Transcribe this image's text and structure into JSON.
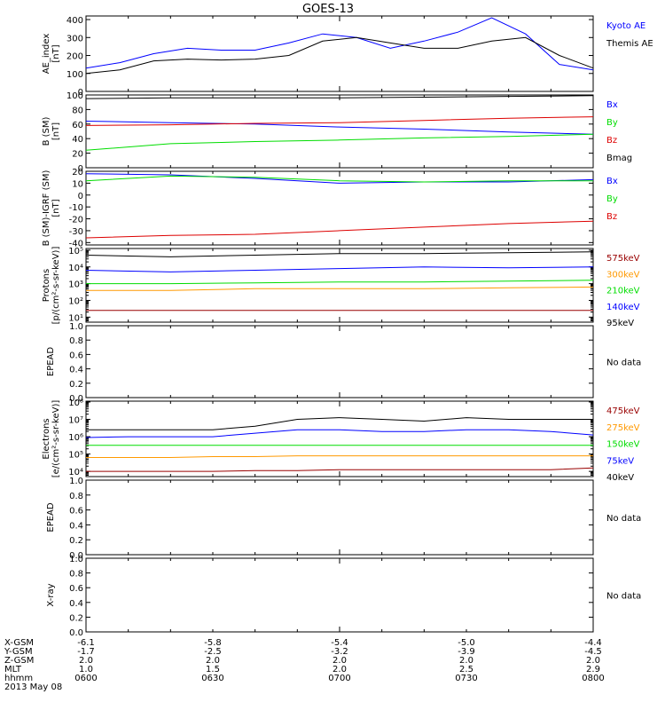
{
  "title": "GOES-13",
  "chart_data": [
    {
      "type": "line",
      "ylabel": [
        "AE_index",
        "[nT]"
      ],
      "ylim": [
        0,
        420
      ],
      "yticks": [
        "0",
        "100",
        "200",
        "300",
        "400"
      ],
      "yticks_values": [
        0,
        100,
        200,
        300,
        400
      ],
      "x": [
        0,
        4,
        8,
        12,
        16,
        20,
        24,
        28,
        32,
        36,
        40,
        44,
        48,
        52,
        56,
        60
      ],
      "series": [
        {
          "name": "Kyoto AE",
          "color": "#0000ff",
          "values": [
            130,
            160,
            210,
            240,
            230,
            230,
            270,
            320,
            300,
            240,
            280,
            330,
            410,
            320,
            150,
            120
          ]
        },
        {
          "name": "Themis AE",
          "color": "#000000",
          "values": [
            100,
            120,
            170,
            180,
            175,
            180,
            200,
            280,
            300,
            270,
            240,
            240,
            280,
            300,
            200,
            130
          ]
        }
      ]
    },
    {
      "type": "line",
      "ylabel": [
        "B (SM)",
        "[nT]"
      ],
      "ylim": [
        0,
        100
      ],
      "yticks": [
        "0",
        "20",
        "40",
        "60",
        "80",
        "100"
      ],
      "yticks_values": [
        0,
        20,
        40,
        60,
        80,
        100
      ],
      "x": [
        0,
        10,
        20,
        30,
        40,
        50,
        60
      ],
      "series": [
        {
          "name": "Bx",
          "color": "#0000ff",
          "values": [
            64,
            62,
            60,
            56,
            53,
            49,
            46
          ]
        },
        {
          "name": "By",
          "color": "#00dd00",
          "values": [
            24,
            33,
            36,
            38,
            41,
            43,
            46
          ]
        },
        {
          "name": "Bz",
          "color": "#dd0000",
          "values": [
            58,
            59,
            61,
            62,
            65,
            68,
            70
          ]
        },
        {
          "name": "Bmag",
          "color": "#000000",
          "values": [
            95,
            96,
            96,
            96,
            97,
            98,
            99
          ]
        }
      ]
    },
    {
      "type": "line",
      "ylabel": [
        "B (SM)-IGRF (SM)",
        "[nT]"
      ],
      "ylim": [
        -42,
        20
      ],
      "yticks": [
        "-40",
        "-30",
        "-20",
        "-10",
        "0",
        "10",
        "20"
      ],
      "yticks_values": [
        -40,
        -30,
        -20,
        -10,
        0,
        10,
        20
      ],
      "x": [
        0,
        10,
        20,
        30,
        40,
        50,
        60
      ],
      "series": [
        {
          "name": "Bx",
          "color": "#0000ff",
          "values": [
            18,
            17,
            14,
            10,
            11,
            11,
            13
          ]
        },
        {
          "name": "By",
          "color": "#00dd00",
          "values": [
            12,
            16,
            15,
            12,
            11,
            12,
            12
          ]
        },
        {
          "name": "Bz",
          "color": "#dd0000",
          "values": [
            -36,
            -34,
            -33,
            -30,
            -27,
            -24,
            -22
          ]
        }
      ]
    },
    {
      "type": "line",
      "log": true,
      "ylabel": [
        "Protons",
        "[p/(cm²-s-sr-keV)]"
      ],
      "ylim_log": [
        0.7,
        5.1
      ],
      "yticks": [
        "10¹",
        "10²",
        "10³",
        "10⁴",
        "10⁵"
      ],
      "yticks_values": [
        1,
        2,
        3,
        4,
        5
      ],
      "x": [
        0,
        10,
        20,
        30,
        40,
        50,
        60
      ],
      "series": [
        {
          "name": "575keV",
          "color": "#990000",
          "values_log": [
            1.4,
            1.4,
            1.4,
            1.4,
            1.4,
            1.4,
            1.4
          ]
        },
        {
          "name": "300keV",
          "color": "#ff9900",
          "values_log": [
            2.6,
            2.6,
            2.7,
            2.7,
            2.7,
            2.75,
            2.8
          ]
        },
        {
          "name": "210keV",
          "color": "#00dd00",
          "values_log": [
            3.0,
            3.0,
            3.05,
            3.1,
            3.1,
            3.15,
            3.2
          ]
        },
        {
          "name": "140keV",
          "color": "#0000ff",
          "values_log": [
            3.8,
            3.7,
            3.8,
            3.9,
            4.0,
            3.95,
            4.0
          ]
        },
        {
          "name": "95keV",
          "color": "#000000",
          "values_log": [
            4.7,
            4.6,
            4.7,
            4.8,
            4.8,
            4.85,
            4.9
          ]
        }
      ]
    },
    {
      "type": "line",
      "ylabel": [
        "EPEAD"
      ],
      "ylim": [
        0,
        1
      ],
      "yticks": [
        "0.0",
        "0.2",
        "0.4",
        "0.6",
        "0.8",
        "1.0"
      ],
      "yticks_values": [
        0,
        0.2,
        0.4,
        0.6,
        0.8,
        1.0
      ],
      "series": [],
      "status": "No data"
    },
    {
      "type": "line",
      "log": true,
      "ylabel": [
        "Electrons",
        "[e/(cm²-s-sr-keV)]"
      ],
      "ylim_log": [
        3.7,
        8.05
      ],
      "yticks": [
        "10⁴",
        "10⁵",
        "10⁶",
        "10⁷",
        "10⁸"
      ],
      "yticks_values": [
        4,
        5,
        6,
        7,
        8
      ],
      "x": [
        0,
        5,
        10,
        15,
        20,
        25,
        30,
        35,
        40,
        45,
        50,
        55,
        60
      ],
      "series": [
        {
          "name": "475keV",
          "color": "#990000",
          "values_log": [
            4.0,
            4.0,
            4.0,
            4.0,
            4.05,
            4.05,
            4.1,
            4.1,
            4.1,
            4.1,
            4.1,
            4.1,
            4.2
          ]
        },
        {
          "name": "275keV",
          "color": "#ff9900",
          "values_log": [
            4.8,
            4.8,
            4.8,
            4.85,
            4.85,
            4.9,
            4.9,
            4.9,
            4.9,
            4.9,
            4.9,
            4.9,
            4.9
          ]
        },
        {
          "name": "150keV",
          "color": "#00dd00",
          "values_log": [
            5.5,
            5.5,
            5.5,
            5.5,
            5.5,
            5.5,
            5.5,
            5.5,
            5.5,
            5.5,
            5.5,
            5.5,
            5.5
          ]
        },
        {
          "name": "75keV",
          "color": "#0000ff",
          "values_log": [
            5.95,
            6.0,
            6.0,
            6.0,
            6.2,
            6.4,
            6.4,
            6.3,
            6.3,
            6.4,
            6.4,
            6.3,
            6.1
          ]
        },
        {
          "name": "40keV",
          "color": "#000000",
          "values_log": [
            6.4,
            6.4,
            6.4,
            6.4,
            6.6,
            7.0,
            7.1,
            7.0,
            6.9,
            7.1,
            7.0,
            7.0,
            7.0
          ]
        }
      ]
    },
    {
      "type": "line",
      "ylabel": [
        "EPEAD"
      ],
      "ylim": [
        0,
        1
      ],
      "yticks": [
        "0.0",
        "0.2",
        "0.4",
        "0.6",
        "0.8",
        "1.0"
      ],
      "yticks_values": [
        0,
        0.2,
        0.4,
        0.6,
        0.8,
        1.0
      ],
      "series": [],
      "status": "No data"
    },
    {
      "type": "line",
      "ylabel": [
        "X-ray"
      ],
      "ylim": [
        0,
        1
      ],
      "yticks": [
        "0.0",
        "0.2",
        "0.4",
        "0.6",
        "0.8",
        "1.0"
      ],
      "yticks_values": [
        0,
        0.2,
        0.4,
        0.6,
        0.8,
        1.0
      ],
      "series": [],
      "status": "No data"
    }
  ],
  "footer": {
    "row_labels": [
      "X-GSM",
      "Y-GSM",
      "Z-GSM",
      "MLT",
      "hhmm"
    ],
    "date": "2013 May 08",
    "columns": [
      [
        "-6.1",
        "-1.7",
        "2.0",
        "1.0",
        "0600"
      ],
      [
        "-5.8",
        "-2.5",
        "2.0",
        "1.5",
        "0630"
      ],
      [
        "-5.4",
        "-3.2",
        "2.0",
        "2.0",
        "0700"
      ],
      [
        "-5.0",
        "-3.9",
        "2.0",
        "2.5",
        "0730"
      ],
      [
        "-4.4",
        "-4.5",
        "2.0",
        "2.9",
        "0800"
      ]
    ]
  }
}
